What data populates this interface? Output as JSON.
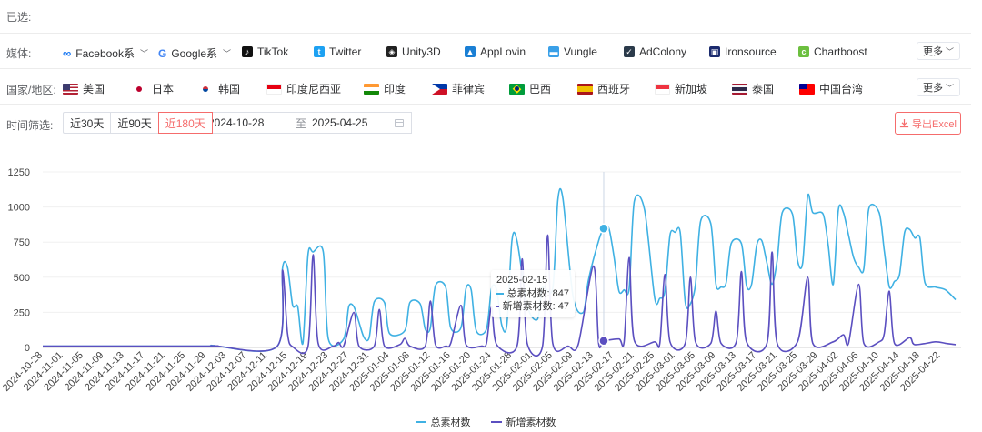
{
  "selected_label": "已选:",
  "media": {
    "label": "媒体:",
    "items": [
      "Facebook系",
      "Google系",
      "TikTok",
      "Twitter",
      "Unity3D",
      "AppLovin",
      "Vungle",
      "AdColony",
      "Ironsource",
      "Chartboost"
    ],
    "icons": [
      "meta-icon",
      "google-icon",
      "tiktok-icon",
      "twitter-icon",
      "unity-icon",
      "applovin-icon",
      "vungle-icon",
      "adcolony-icon",
      "ironsource-icon",
      "chartboost-icon"
    ],
    "more": "更多"
  },
  "region": {
    "label": "国家/地区:",
    "items": [
      "美国",
      "日本",
      "韩国",
      "印度尼西亚",
      "印度",
      "菲律宾",
      "巴西",
      "西班牙",
      "新加坡",
      "泰国",
      "中国台湾"
    ],
    "more": "更多"
  },
  "time": {
    "label": "时间筛选:",
    "ranges": [
      "近30天",
      "近90天",
      "近180天"
    ],
    "active_range": "近180天",
    "start_date": "2024-10-28",
    "separator": "至",
    "end_date": "2025-04-25",
    "export_label": "导出Excel"
  },
  "tooltip": {
    "date": "2025-02-15",
    "total_label": "总素材数: 847",
    "new_label": "新增素材数: 47"
  },
  "colors": {
    "total": "#3fb1e3",
    "new": "#5b4fc0",
    "accent": "#f56c6c"
  },
  "chart_data": {
    "type": "line",
    "y_ticks": [
      0,
      250,
      500,
      750,
      1000,
      1250
    ],
    "ylim": [
      0,
      1250
    ],
    "x_tick_labels": [
      "2024-10-28",
      "2024-11-01",
      "2024-11-05",
      "2024-11-09",
      "2024-11-13",
      "2024-11-17",
      "2024-11-21",
      "2024-11-25",
      "2024-11-29",
      "2024-12-03",
      "2024-12-07",
      "2024-12-11",
      "2024-12-15",
      "2024-12-19",
      "2024-12-23",
      "2024-12-27",
      "2024-12-31",
      "2025-01-04",
      "2025-01-08",
      "2025-01-12",
      "2025-01-16",
      "2025-01-20",
      "2025-01-24",
      "2025-01-28",
      "2025-02-01",
      "2025-02-05",
      "2025-02-09",
      "2025-02-13",
      "2025-02-17",
      "2025-02-21",
      "2025-02-25",
      "2025-03-01",
      "2025-03-05",
      "2025-03-09",
      "2025-03-13",
      "2025-03-17",
      "2025-03-21",
      "2025-03-25",
      "2025-03-29",
      "2025-04-02",
      "2025-04-06",
      "2025-04-10",
      "2025-04-14",
      "2025-04-18",
      "2025-04-22"
    ],
    "x_start": "2024-10-28",
    "x_end": "2025-04-25",
    "legend": [
      "总素材数",
      "新增素材数"
    ],
    "legend_position": "bottom",
    "grid": true,
    "series": [
      {
        "name": "总素材数",
        "points": [
          [
            "2024-10-28",
            10
          ],
          [
            "2024-11-28",
            10
          ],
          [
            "2024-11-30",
            15
          ],
          [
            "2024-12-01",
            10
          ],
          [
            "2024-12-13",
            10
          ],
          [
            "2024-12-14",
            560
          ],
          [
            "2024-12-15",
            570
          ],
          [
            "2024-12-16",
            300
          ],
          [
            "2024-12-17",
            290
          ],
          [
            "2024-12-18",
            30
          ],
          [
            "2024-12-19",
            660
          ],
          [
            "2024-12-20",
            680
          ],
          [
            "2024-12-22",
            680
          ],
          [
            "2024-12-23",
            60
          ],
          [
            "2024-12-26",
            60
          ],
          [
            "2024-12-27",
            290
          ],
          [
            "2024-12-28",
            290
          ],
          [
            "2024-12-29",
            180
          ],
          [
            "2024-12-30",
            70
          ],
          [
            "2024-12-31",
            70
          ],
          [
            "2025-01-01",
            325
          ],
          [
            "2025-01-03",
            320
          ],
          [
            "2025-01-04",
            100
          ],
          [
            "2025-01-07",
            120
          ],
          [
            "2025-01-08",
            320
          ],
          [
            "2025-01-10",
            310
          ],
          [
            "2025-01-11",
            130
          ],
          [
            "2025-01-12",
            140
          ],
          [
            "2025-01-13",
            440
          ],
          [
            "2025-01-15",
            430
          ],
          [
            "2025-01-16",
            140
          ],
          [
            "2025-01-18",
            140
          ],
          [
            "2025-01-19",
            420
          ],
          [
            "2025-01-20",
            410
          ],
          [
            "2025-01-21",
            120
          ],
          [
            "2025-01-23",
            130
          ],
          [
            "2025-01-24",
            420
          ],
          [
            "2025-01-25",
            410
          ],
          [
            "2025-01-26",
            160
          ],
          [
            "2025-01-27",
            160
          ],
          [
            "2025-01-28",
            760
          ],
          [
            "2025-01-29",
            760
          ],
          [
            "2025-01-31",
            300
          ],
          [
            "2025-02-02",
            200
          ],
          [
            "2025-02-03",
            430
          ],
          [
            "2025-02-05",
            420
          ],
          [
            "2025-02-06",
            1050
          ],
          [
            "2025-02-07",
            1060
          ],
          [
            "2025-02-09",
            360
          ],
          [
            "2025-02-11",
            250
          ],
          [
            "2025-02-12",
            480
          ],
          [
            "2025-02-14",
            760
          ],
          [
            "2025-02-15",
            847
          ],
          [
            "2025-02-16",
            850
          ],
          [
            "2025-02-17",
            650
          ],
          [
            "2025-02-18",
            400
          ],
          [
            "2025-02-19",
            410
          ],
          [
            "2025-02-20",
            420
          ],
          [
            "2025-02-21",
            1040
          ],
          [
            "2025-02-23",
            980
          ],
          [
            "2025-02-25",
            350
          ],
          [
            "2025-02-26",
            350
          ],
          [
            "2025-02-27",
            400
          ],
          [
            "2025-02-28",
            800
          ],
          [
            "2025-03-01",
            820
          ],
          [
            "2025-03-02",
            820
          ],
          [
            "2025-03-03",
            320
          ],
          [
            "2025-03-04",
            310
          ],
          [
            "2025-03-05",
            450
          ],
          [
            "2025-03-06",
            900
          ],
          [
            "2025-03-08",
            880
          ],
          [
            "2025-03-09",
            450
          ],
          [
            "2025-03-10",
            430
          ],
          [
            "2025-03-11",
            460
          ],
          [
            "2025-03-12",
            740
          ],
          [
            "2025-03-14",
            740
          ],
          [
            "2025-03-15",
            440
          ],
          [
            "2025-03-16",
            450
          ],
          [
            "2025-03-17",
            730
          ],
          [
            "2025-03-18",
            760
          ],
          [
            "2025-03-19",
            600
          ],
          [
            "2025-03-20",
            450
          ],
          [
            "2025-03-21",
            620
          ],
          [
            "2025-03-22",
            960
          ],
          [
            "2025-03-24",
            950
          ],
          [
            "2025-03-25",
            620
          ],
          [
            "2025-03-26",
            600
          ],
          [
            "2025-03-27",
            1080
          ],
          [
            "2025-03-28",
            960
          ],
          [
            "2025-03-30",
            950
          ],
          [
            "2025-03-31",
            730
          ],
          [
            "2025-04-01",
            450
          ],
          [
            "2025-04-02",
            980
          ],
          [
            "2025-04-03",
            960
          ],
          [
            "2025-04-04",
            800
          ],
          [
            "2025-04-05",
            640
          ],
          [
            "2025-04-06",
            570
          ],
          [
            "2025-04-07",
            560
          ],
          [
            "2025-04-08",
            990
          ],
          [
            "2025-04-10",
            960
          ],
          [
            "2025-04-11",
            690
          ],
          [
            "2025-04-12",
            430
          ],
          [
            "2025-04-13",
            470
          ],
          [
            "2025-04-14",
            520
          ],
          [
            "2025-04-15",
            820
          ],
          [
            "2025-04-16",
            840
          ],
          [
            "2025-04-17",
            780
          ],
          [
            "2025-04-18",
            780
          ],
          [
            "2025-04-19",
            460
          ],
          [
            "2025-04-21",
            430
          ],
          [
            "2025-04-23",
            410
          ],
          [
            "2025-04-25",
            340
          ]
        ]
      },
      {
        "name": "新增素材数",
        "points": [
          [
            "2024-10-28",
            10
          ],
          [
            "2024-11-29",
            10
          ],
          [
            "2024-11-30",
            12
          ],
          [
            "2024-12-01",
            10
          ],
          [
            "2024-12-13",
            10
          ],
          [
            "2024-12-14",
            550
          ],
          [
            "2024-12-15",
            100
          ],
          [
            "2024-12-16",
            5
          ],
          [
            "2024-12-19",
            5
          ],
          [
            "2024-12-20",
            660
          ],
          [
            "2024-12-21",
            30
          ],
          [
            "2024-12-24",
            10
          ],
          [
            "2024-12-25",
            35
          ],
          [
            "2024-12-26",
            10
          ],
          [
            "2024-12-28",
            250
          ],
          [
            "2024-12-29",
            10
          ],
          [
            "2025-01-01",
            10
          ],
          [
            "2025-01-02",
            270
          ],
          [
            "2025-01-03",
            10
          ],
          [
            "2025-01-06",
            20
          ],
          [
            "2025-01-07",
            65
          ],
          [
            "2025-01-08",
            10
          ],
          [
            "2025-01-11",
            10
          ],
          [
            "2025-01-12",
            330
          ],
          [
            "2025-01-13",
            20
          ],
          [
            "2025-01-15",
            10
          ],
          [
            "2025-01-16",
            30
          ],
          [
            "2025-01-18",
            300
          ],
          [
            "2025-01-19",
            20
          ],
          [
            "2025-01-22",
            10
          ],
          [
            "2025-01-23",
            30
          ],
          [
            "2025-01-24",
            290
          ],
          [
            "2025-01-25",
            20
          ],
          [
            "2025-01-29",
            10
          ],
          [
            "2025-01-30",
            630
          ],
          [
            "2025-01-31",
            30
          ],
          [
            "2025-02-03",
            10
          ],
          [
            "2025-02-04",
            800
          ],
          [
            "2025-02-05",
            30
          ],
          [
            "2025-02-08",
            10
          ],
          [
            "2025-02-10",
            20
          ],
          [
            "2025-02-13",
            580
          ],
          [
            "2025-02-14",
            30
          ],
          [
            "2025-02-15",
            47
          ],
          [
            "2025-02-18",
            60
          ],
          [
            "2025-02-19",
            40
          ],
          [
            "2025-02-20",
            640
          ],
          [
            "2025-02-21",
            50
          ],
          [
            "2025-02-25",
            40
          ],
          [
            "2025-02-26",
            30
          ],
          [
            "2025-02-27",
            520
          ],
          [
            "2025-02-28",
            40
          ],
          [
            "2025-03-03",
            30
          ],
          [
            "2025-03-04",
            500
          ],
          [
            "2025-03-05",
            40
          ],
          [
            "2025-03-08",
            30
          ],
          [
            "2025-03-09",
            260
          ],
          [
            "2025-03-10",
            30
          ],
          [
            "2025-03-13",
            40
          ],
          [
            "2025-03-14",
            540
          ],
          [
            "2025-03-15",
            40
          ],
          [
            "2025-03-19",
            30
          ],
          [
            "2025-03-20",
            680
          ],
          [
            "2025-03-21",
            30
          ],
          [
            "2025-03-25",
            40
          ],
          [
            "2025-03-27",
            500
          ],
          [
            "2025-03-28",
            30
          ],
          [
            "2025-04-01",
            40
          ],
          [
            "2025-04-03",
            90
          ],
          [
            "2025-04-04",
            30
          ],
          [
            "2025-04-06",
            450
          ],
          [
            "2025-04-07",
            30
          ],
          [
            "2025-04-10",
            40
          ],
          [
            "2025-04-11",
            100
          ],
          [
            "2025-04-12",
            400
          ],
          [
            "2025-04-13",
            30
          ],
          [
            "2025-04-16",
            70
          ],
          [
            "2025-04-17",
            20
          ],
          [
            "2025-04-21",
            40
          ],
          [
            "2025-04-23",
            30
          ],
          [
            "2025-04-25",
            20
          ]
        ]
      }
    ],
    "highlight": {
      "date": "2025-02-15",
      "total": 847,
      "new": 47
    }
  }
}
